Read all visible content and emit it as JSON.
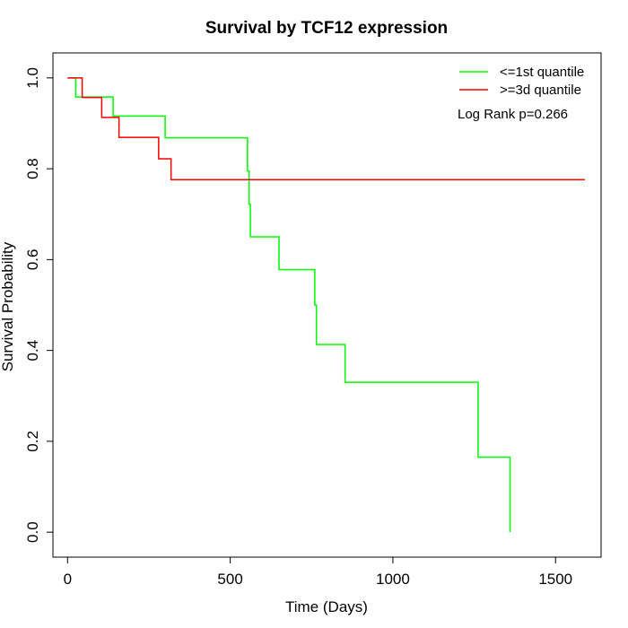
{
  "chart_data": {
    "type": "line",
    "title": "Survival by TCF12 expression",
    "xlabel": "Time (Days)",
    "ylabel": "Survival Probability",
    "xlim": [
      -45,
      1640
    ],
    "ylim": [
      -0.055,
      1.055
    ],
    "x_ticks": [
      0,
      500,
      1000,
      1500
    ],
    "x_tick_labels": [
      "0",
      "500",
      "1000",
      "1500"
    ],
    "y_ticks": [
      0.0,
      0.2,
      0.4,
      0.6,
      0.8,
      1.0
    ],
    "y_tick_labels": [
      "0.0",
      "0.2",
      "0.4",
      "0.6",
      "0.8",
      "1.0"
    ],
    "grid": false,
    "legend_position": "top-right",
    "annotation": "Log Rank p=0.266",
    "series": [
      {
        "name": "<=1st quantile",
        "color": "#00ff00",
        "step": true,
        "x": [
          0,
          25,
          140,
          300,
          553,
          558,
          562,
          570,
          650,
          760,
          765,
          853,
          1262,
          1360,
          1360
        ],
        "y": [
          1.0,
          0.958,
          0.916,
          0.868,
          0.795,
          0.722,
          0.65,
          0.65,
          0.578,
          0.5,
          0.413,
          0.33,
          0.165,
          0.0,
          0.0
        ]
      },
      {
        "name": ">=3d quantile",
        "color": "#ff0000",
        "step": true,
        "x": [
          0,
          45,
          105,
          158,
          280,
          318,
          1590
        ],
        "y": [
          1.0,
          0.957,
          0.913,
          0.869,
          0.822,
          0.776,
          0.776
        ]
      }
    ]
  }
}
